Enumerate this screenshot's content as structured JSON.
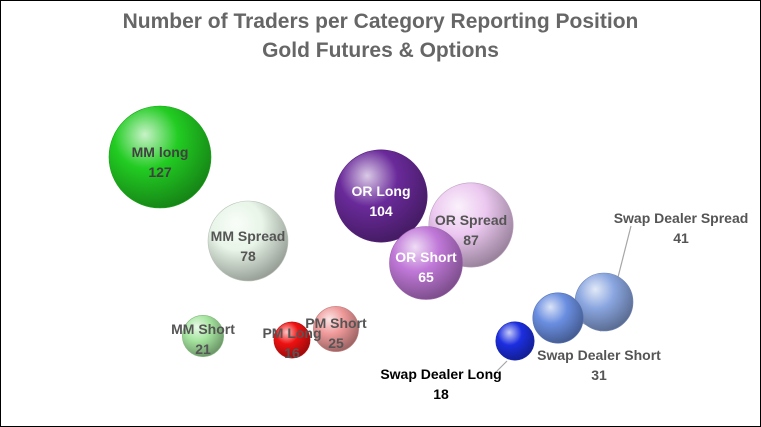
{
  "chart_data": {
    "type": "bubble",
    "title": "Number of Traders per Category Reporting Position",
    "subtitle": "Gold Futures & Options",
    "xlabel": "",
    "ylabel": "",
    "axes_visible": false,
    "grid": false,
    "legend": "none",
    "points": [
      {
        "label": "MM long",
        "value": 127,
        "color": "#22cc22",
        "label_color": "#404040"
      },
      {
        "label": "MM Spread",
        "value": 78,
        "color": "#e8f5e8",
        "label_color": "#555555"
      },
      {
        "label": "MM Short",
        "value": 21,
        "color": "#a6e6a0",
        "label_color": "#555555"
      },
      {
        "label": "PM Long",
        "value": 16,
        "color": "#ee1111",
        "label_color": "#555555"
      },
      {
        "label": "PM Short",
        "value": 25,
        "color": "#f09a9a",
        "label_color": "#555555"
      },
      {
        "label": "OR Long",
        "value": 104,
        "color": "#6a2a9a",
        "label_color": "#ffffff"
      },
      {
        "label": "OR Spread",
        "value": 87,
        "color": "#ecc8f0",
        "label_color": "#555555"
      },
      {
        "label": "OR Short",
        "value": 65,
        "color": "#c078d8",
        "label_color": "#ffffff"
      },
      {
        "label": "Swap Dealer Long",
        "value": 18,
        "color": "#1c2ee0",
        "label_color": "#000000"
      },
      {
        "label": "Swap Dealer Short",
        "value": 31,
        "color": "#6a8ee0",
        "label_color": "#555555"
      },
      {
        "label": "Swap Dealer Spread",
        "value": 41,
        "color": "#8aa6e0",
        "label_color": "#555555"
      }
    ]
  }
}
